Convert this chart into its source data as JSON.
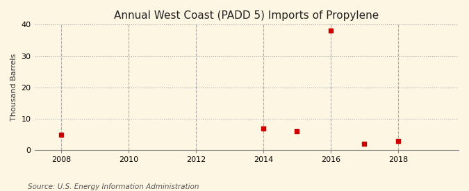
{
  "title": "Annual West Coast (PADD 5) Imports of Propylene",
  "ylabel": "Thousand Barrels",
  "source": "Source: U.S. Energy Information Administration",
  "background_color": "#fdf6e3",
  "plot_bg_color": "#fdf6e3",
  "data_points": {
    "2008": 5,
    "2014": 7,
    "2015": 6,
    "2016": 38,
    "2017": 2,
    "2018": 3
  },
  "marker_color": "#cc0000",
  "marker": "s",
  "marker_size": 4,
  "xlim": [
    2007.2,
    2019.8
  ],
  "ylim": [
    0,
    40
  ],
  "yticks": [
    0,
    10,
    20,
    30,
    40
  ],
  "xticks": [
    2008,
    2010,
    2012,
    2014,
    2016,
    2018
  ],
  "grid_color": "#aaaaaa",
  "grid_linestyle": ":",
  "grid_linewidth": 0.8,
  "title_fontsize": 11,
  "ylabel_fontsize": 8,
  "tick_fontsize": 8,
  "source_fontsize": 7.5
}
